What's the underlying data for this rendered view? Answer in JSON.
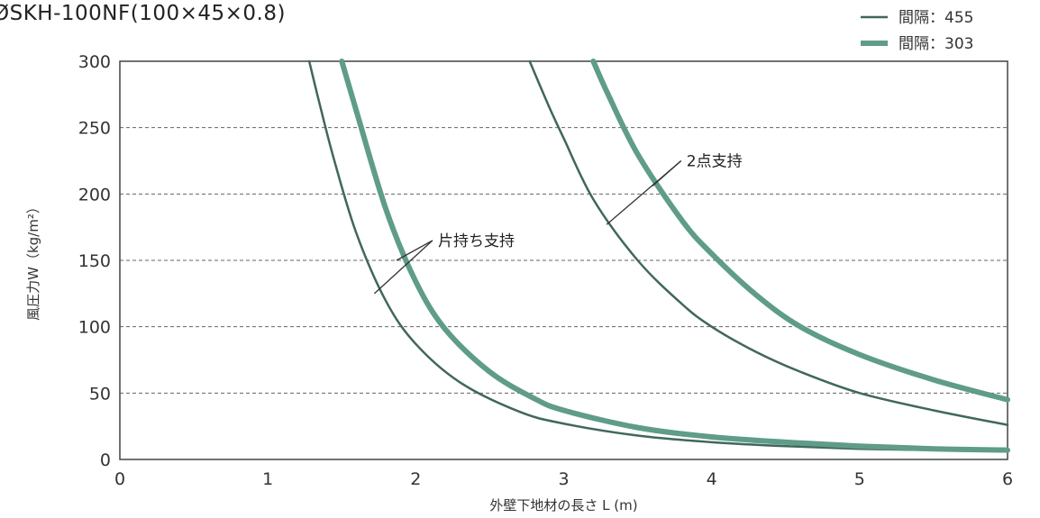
{
  "chart_data": {
    "type": "line",
    "title": "ØSKH-100NF(100×45×0.8)",
    "xlabel": "外壁下地材の長さ L (m)",
    "ylabel": "風圧力W（kg/m²）",
    "xlim": [
      0,
      6
    ],
    "ylim": [
      0,
      300
    ],
    "x_ticks": [
      0,
      1,
      2,
      3,
      4,
      5,
      6
    ],
    "y_ticks": [
      0,
      50,
      100,
      150,
      200,
      250,
      300
    ],
    "grid": "horizontal dashed",
    "legend_position": "top-right",
    "legend": [
      {
        "label": "間隔：455",
        "color": "#41675c"
      },
      {
        "label": "間隔：303",
        "color": "#5f9c8a"
      }
    ],
    "series": [
      {
        "group": "片持ち支持",
        "legend": 0,
        "x": [
          1.28,
          1.35,
          1.45,
          1.6,
          1.8,
          2.0,
          2.3,
          2.7,
          3.0,
          3.5,
          4.0,
          4.5,
          5.0,
          5.5,
          6.0
        ],
        "y": [
          300,
          268,
          225,
          170,
          119,
          87,
          58,
          36,
          27,
          18,
          13,
          10,
          8,
          7,
          6
        ]
      },
      {
        "group": "片持ち支持",
        "legend": 1,
        "x": [
          1.5,
          1.6,
          1.8,
          2.0,
          2.2,
          2.5,
          2.8,
          3.0,
          3.5,
          4.0,
          4.5,
          5.0,
          5.5,
          6.0
        ],
        "y": [
          300,
          262,
          188,
          134,
          98,
          66,
          46,
          37,
          24,
          17,
          13,
          10,
          8,
          7
        ]
      },
      {
        "group": "2点支持",
        "legend": 0,
        "x": [
          2.77,
          2.9,
          3.0,
          3.2,
          3.5,
          3.8,
          4.0,
          4.3,
          4.6,
          5.0,
          5.5,
          6.0
        ],
        "y": [
          300,
          266,
          242,
          196,
          150,
          117,
          100,
          81,
          66,
          50,
          37,
          26
        ]
      },
      {
        "group": "2点支持",
        "legend": 1,
        "x": [
          3.2,
          3.3,
          3.5,
          3.8,
          4.0,
          4.3,
          4.6,
          5.0,
          5.5,
          6.0
        ],
        "y": [
          300,
          275,
          230,
          180,
          155,
          124,
          100,
          79,
          60,
          45
        ]
      }
    ],
    "annotations": [
      {
        "text": "片持ち支持",
        "x": 2.15,
        "y": 165,
        "arrows": [
          [
            1.72,
            125
          ],
          [
            1.87,
            150
          ]
        ]
      },
      {
        "text": "2点支持",
        "x": 3.83,
        "y": 225,
        "arrows": [
          [
            3.29,
            177
          ],
          [
            3.6,
            206
          ]
        ]
      }
    ]
  }
}
